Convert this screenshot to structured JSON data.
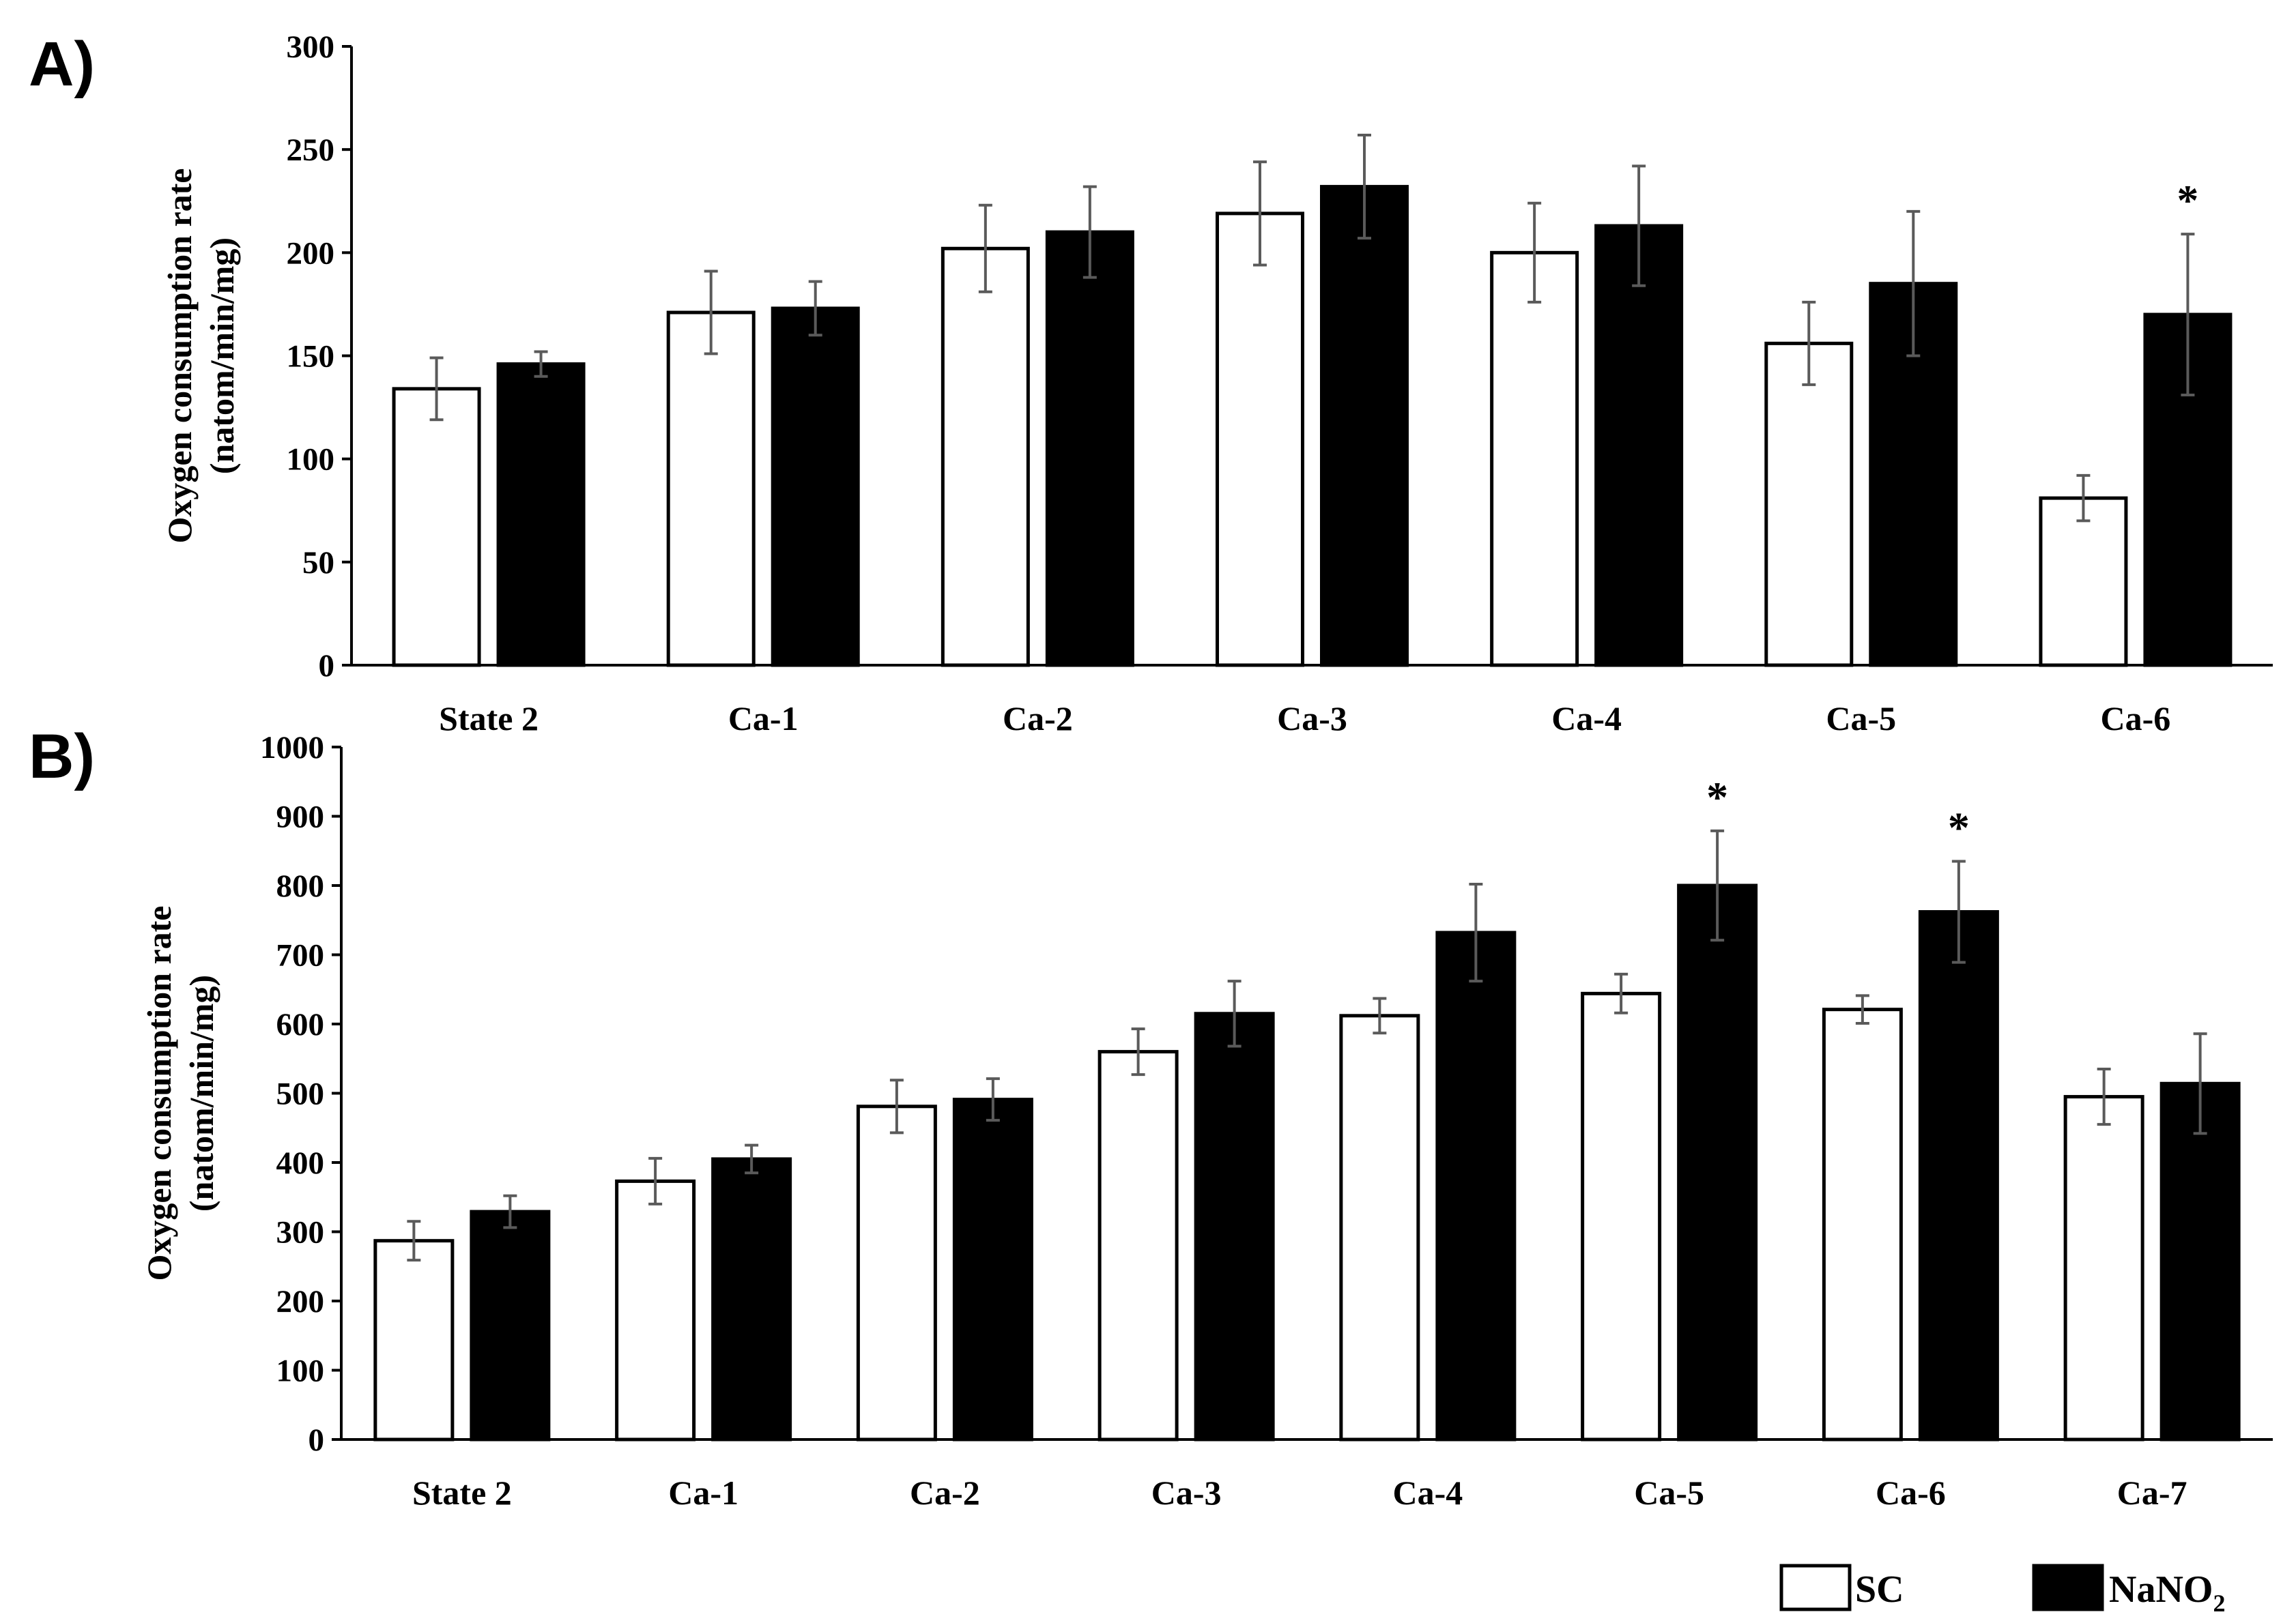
{
  "legend": {
    "sc_label": "SC",
    "nano2_label": "NaNO",
    "nano2_subscript": "2",
    "sc_color": "#ffffff",
    "nano2_color": "#000000"
  },
  "chart_data": [
    {
      "type": "bar",
      "panel": "A)",
      "ylabel_line1": "Oxygen consumption rate",
      "ylabel_line2": "(natom/min/mg)",
      "ylim": [
        0,
        300
      ],
      "yticks": [
        0,
        50,
        100,
        150,
        200,
        250,
        300
      ],
      "categories": [
        "State 2",
        "Ca-1",
        "Ca-2",
        "Ca-3",
        "Ca-4",
        "Ca-5",
        "Ca-6"
      ],
      "series": [
        {
          "name": "SC",
          "color": "#ffffff",
          "values": [
            134,
            171,
            202,
            219,
            200,
            156,
            81
          ],
          "errors": [
            15,
            20,
            21,
            25,
            24,
            20,
            11
          ]
        },
        {
          "name": "NaNO2",
          "color": "#000000",
          "values": [
            146,
            173,
            210,
            232,
            213,
            185,
            170
          ],
          "errors": [
            6,
            13,
            22,
            25,
            29,
            35,
            39
          ]
        }
      ],
      "significance": [
        {
          "category": "Ca-6",
          "series": "NaNO2",
          "mark": "*"
        }
      ]
    },
    {
      "type": "bar",
      "panel": "B)",
      "ylabel_line1": "Oxygen consumption rate",
      "ylabel_line2": "(natom/min/mg)",
      "ylim": [
        0,
        1000
      ],
      "yticks": [
        0,
        100,
        200,
        300,
        400,
        500,
        600,
        700,
        800,
        900,
        1000
      ],
      "categories": [
        "State 2",
        "Ca-1",
        "Ca-2",
        "Ca-3",
        "Ca-4",
        "Ca-5",
        "Ca-6",
        "Ca-7"
      ],
      "series": [
        {
          "name": "SC",
          "color": "#ffffff",
          "values": [
            287,
            373,
            481,
            560,
            612,
            644,
            621,
            495
          ],
          "errors": [
            28,
            33,
            38,
            33,
            25,
            28,
            20,
            40
          ]
        },
        {
          "name": "NaNO2",
          "color": "#000000",
          "values": [
            329,
            405,
            491,
            615,
            732,
            800,
            762,
            514
          ],
          "errors": [
            23,
            20,
            30,
            47,
            70,
            79,
            73,
            72
          ]
        }
      ],
      "significance": [
        {
          "category": "Ca-5",
          "series": "NaNO2",
          "mark": "*"
        },
        {
          "category": "Ca-6",
          "series": "NaNO2",
          "mark": "*"
        }
      ]
    }
  ]
}
